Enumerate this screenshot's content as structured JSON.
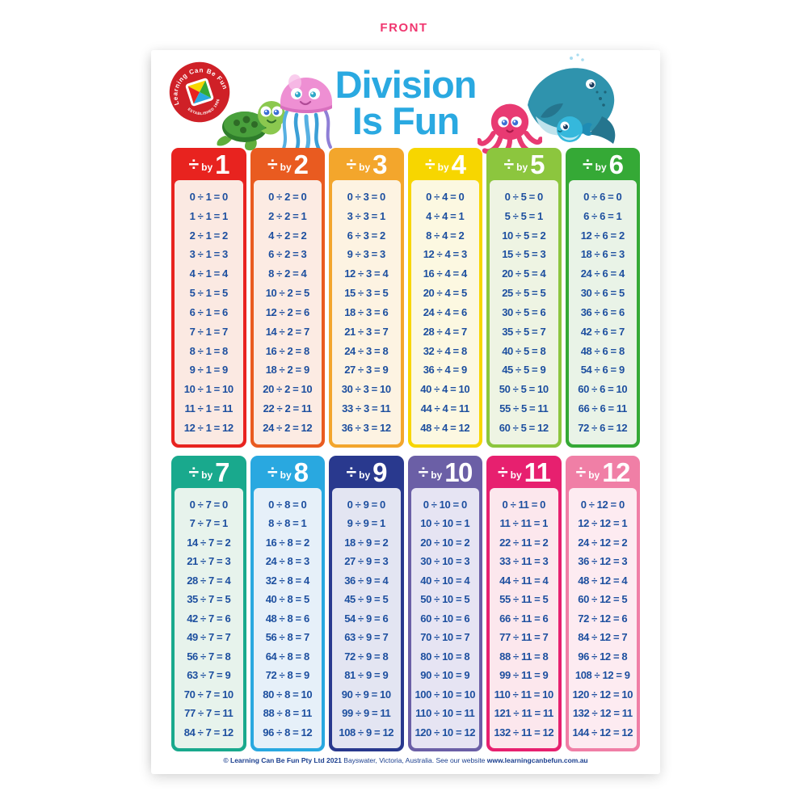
{
  "front_label": "FRONT",
  "logo": {
    "ring_text": "Learning Can Be Fun",
    "established": "ESTABLISHED 1986",
    "circle_color": "#cf2027"
  },
  "title": {
    "line1": "Division",
    "line2": "Is Fun",
    "color": "#2aa9e1"
  },
  "creatures": [
    "turtle-illustration",
    "jellyfish-illustration",
    "octopus-illustration",
    "whale-illustration",
    "baby-fish-illustration"
  ],
  "divide_symbol": "÷",
  "by_label": "by",
  "equation_text_color": "#1d4f9f",
  "tables": [
    {
      "divisor": "1",
      "head": "#e8231f",
      "body": "#fbe9e2",
      "rows": [
        "0 ÷ 1 = 0",
        "1 ÷ 1 = 1",
        "2 ÷ 1 = 2",
        "3 ÷ 1 = 3",
        "4 ÷ 1 = 4",
        "5 ÷ 1 = 5",
        "6 ÷ 1 = 6",
        "7 ÷ 1 = 7",
        "8 ÷ 1 = 8",
        "9 ÷ 1 = 9",
        "10 ÷ 1 = 10",
        "11 ÷ 1 = 11",
        "12 ÷ 1 = 12"
      ]
    },
    {
      "divisor": "2",
      "head": "#e95b20",
      "body": "#fcebe3",
      "rows": [
        "0 ÷ 2 = 0",
        "2 ÷ 2 = 1",
        "4 ÷ 2 = 2",
        "6 ÷ 2 = 3",
        "8 ÷ 2 = 4",
        "10 ÷ 2 = 5",
        "12 ÷ 2 = 6",
        "14 ÷ 2 = 7",
        "16 ÷ 2 = 8",
        "18 ÷ 2 = 9",
        "20 ÷ 2 = 10",
        "22 ÷ 2 = 11",
        "24 ÷ 2 = 12"
      ]
    },
    {
      "divisor": "3",
      "head": "#f3a62c",
      "body": "#fdf3e2",
      "rows": [
        "0 ÷ 3 = 0",
        "3 ÷ 3 = 1",
        "6 ÷ 3 = 2",
        "9 ÷ 3 = 3",
        "12 ÷ 3 = 4",
        "15 ÷ 3 = 5",
        "18 ÷ 3 = 6",
        "21 ÷ 3 = 7",
        "24 ÷ 3 = 8",
        "27 ÷ 3 = 9",
        "30 ÷ 3 = 10",
        "33 ÷ 3 = 11",
        "36 ÷ 3 = 12"
      ]
    },
    {
      "divisor": "4",
      "head": "#f7d600",
      "body": "#fcf8e1",
      "rows": [
        "0 ÷ 4 = 0",
        "4 ÷ 4 = 1",
        "8 ÷ 4 = 2",
        "12 ÷ 4 = 3",
        "16 ÷ 4 = 4",
        "20 ÷ 4 = 5",
        "24 ÷ 4 = 6",
        "28 ÷ 4 = 7",
        "32 ÷ 4 = 8",
        "36 ÷ 4 = 9",
        "40 ÷ 4 = 10",
        "44 ÷ 4 = 11",
        "48 ÷ 4 = 12"
      ]
    },
    {
      "divisor": "5",
      "head": "#8cc63e",
      "body": "#eef4e3",
      "rows": [
        "0 ÷ 5 = 0",
        "5 ÷ 5 = 1",
        "10 ÷ 5 = 2",
        "15 ÷ 5 = 3",
        "20 ÷ 5 = 4",
        "25 ÷ 5 = 5",
        "30 ÷ 5 = 6",
        "35 ÷ 5 = 7",
        "40 ÷ 5 = 8",
        "45 ÷ 5 = 9",
        "50 ÷ 5 = 10",
        "55 ÷ 5 = 11",
        "60 ÷ 5 = 12"
      ]
    },
    {
      "divisor": "6",
      "head": "#35a936",
      "body": "#e9f3e7",
      "rows": [
        "0 ÷ 6 = 0",
        "6 ÷ 6 = 1",
        "12 ÷ 6 = 2",
        "18 ÷ 6 = 3",
        "24 ÷ 6 = 4",
        "30 ÷ 6 = 5",
        "36 ÷ 6 = 6",
        "42 ÷ 6 = 7",
        "48 ÷ 6 = 8",
        "54 ÷ 6 = 9",
        "60 ÷ 6 = 10",
        "66 ÷ 6 = 11",
        "72 ÷ 6 = 12"
      ]
    },
    {
      "divisor": "7",
      "head": "#19a98d",
      "body": "#e7f3ec",
      "rows": [
        "0 ÷ 7 = 0",
        "7 ÷ 7 = 1",
        "14 ÷ 7 = 2",
        "21 ÷ 7 = 3",
        "28 ÷ 7 = 4",
        "35 ÷ 7 = 5",
        "42 ÷ 7 = 6",
        "49 ÷ 7 = 7",
        "56 ÷ 7 = 8",
        "63 ÷ 7 = 9",
        "70 ÷ 7 = 10",
        "77 ÷ 7 = 11",
        "84 ÷ 7 = 12"
      ]
    },
    {
      "divisor": "8",
      "head": "#29a8e0",
      "body": "#e6f0f9",
      "rows": [
        "0 ÷ 8 = 0",
        "8 ÷ 8 = 1",
        "16 ÷ 8 = 2",
        "24 ÷ 8 = 3",
        "32 ÷ 8 = 4",
        "40 ÷ 8 = 5",
        "48 ÷ 8 = 6",
        "56 ÷ 8 = 7",
        "64 ÷ 8 = 8",
        "72 ÷ 8 = 9",
        "80 ÷ 8 = 10",
        "88 ÷ 8 = 11",
        "96 ÷ 8 = 12"
      ]
    },
    {
      "divisor": "9",
      "head": "#29398e",
      "body": "#e3e5f2",
      "rows": [
        "0 ÷ 9 = 0",
        "9 ÷ 9 = 1",
        "18 ÷ 9 = 2",
        "27 ÷ 9 = 3",
        "36 ÷ 9 = 4",
        "45 ÷ 9 = 5",
        "54 ÷ 9 = 6",
        "63 ÷ 9 = 7",
        "72 ÷ 9 = 8",
        "81 ÷ 9 = 9",
        "90 ÷ 9 = 10",
        "99 ÷ 9 = 11",
        "108 ÷ 9 = 12"
      ]
    },
    {
      "divisor": "10",
      "head": "#6b5fa6",
      "body": "#e6e4f3",
      "rows": [
        "0 ÷ 10 = 0",
        "10 ÷ 10 = 1",
        "20 ÷ 10 = 2",
        "30 ÷ 10 = 3",
        "40 ÷ 10 = 4",
        "50 ÷ 10 = 5",
        "60 ÷ 10 = 6",
        "70 ÷ 10 = 7",
        "80 ÷ 10 = 8",
        "90 ÷ 10 = 9",
        "100 ÷ 10 = 10",
        "110 ÷ 10 = 11",
        "120 ÷ 10 = 12"
      ]
    },
    {
      "divisor": "11",
      "head": "#e7206f",
      "body": "#fce7ed",
      "rows": [
        "0 ÷ 11 = 0",
        "11 ÷ 11 = 1",
        "22 ÷ 11 = 2",
        "33 ÷ 11 = 3",
        "44 ÷ 11 = 4",
        "55 ÷ 11 = 5",
        "66 ÷ 11 = 6",
        "77 ÷ 11 = 7",
        "88 ÷ 11 = 8",
        "99 ÷ 11 = 9",
        "110 ÷ 11 = 10",
        "121 ÷ 11 = 11",
        "132 ÷ 11 = 12"
      ]
    },
    {
      "divisor": "12",
      "head": "#f07fa6",
      "body": "#fdebf1",
      "rows": [
        "0 ÷ 12 = 0",
        "12 ÷ 12 = 1",
        "24 ÷ 12 = 2",
        "36 ÷ 12 = 3",
        "48 ÷ 12 = 4",
        "60 ÷ 12 = 5",
        "72 ÷ 12 = 6",
        "84 ÷ 12 = 7",
        "96 ÷ 12 = 8",
        "108 ÷ 12 = 9",
        "120 ÷ 12 = 10",
        "132 ÷ 12 = 11",
        "144 ÷ 12 = 12"
      ]
    }
  ],
  "footer": {
    "part1": "© Learning Can Be Fun Pty Ltd 2021",
    "part2": " Bayswater, Victoria, Australia. See our website ",
    "part3": "www.learningcanbefun.com.au"
  }
}
